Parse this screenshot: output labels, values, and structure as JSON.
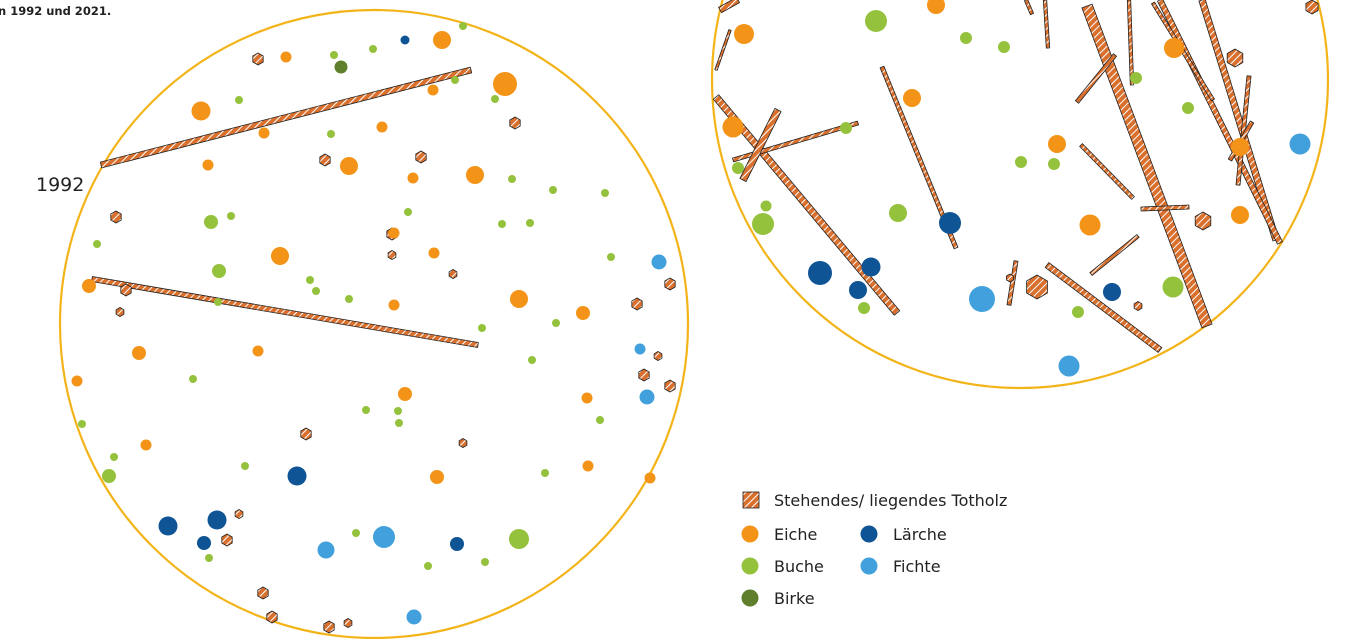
{
  "caption": "n 1992 und 2021.",
  "year_label": "1992",
  "legend": {
    "deadwood": "Stehendes/ liegendes Totholz",
    "eiche": "Eiche",
    "buche": "Buche",
    "birke": "Birke",
    "laerche": "Lärche",
    "fichte": "Fichte"
  },
  "colors": {
    "ring": "#f3b41a",
    "eiche": "#f39418",
    "buche": "#95c23d",
    "birke": "#5f7f2c",
    "laerche": "#0f5494",
    "fichte": "#42a1dc",
    "deadwood": "#d9702e"
  },
  "plots": [
    {
      "name": "plot-1992",
      "trees": [
        [
          "eiche",
          442,
          40,
          9
        ],
        [
          "eiche",
          286,
          57,
          5.5
        ],
        [
          "eiche",
          505,
          84,
          12
        ],
        [
          "eiche",
          433,
          90,
          5.5
        ],
        [
          "eiche",
          201,
          111,
          9.5
        ],
        [
          "eiche",
          382,
          127,
          5.5
        ],
        [
          "eiche",
          264,
          133,
          5.5
        ],
        [
          "eiche",
          349,
          166,
          9
        ],
        [
          "eiche",
          208,
          165,
          5.5
        ],
        [
          "eiche",
          475,
          175,
          9
        ],
        [
          "eiche",
          413,
          178,
          5.5
        ],
        [
          "eiche",
          394,
          233,
          5.5
        ],
        [
          "eiche",
          280,
          256,
          9
        ],
        [
          "eiche",
          434,
          253,
          5.5
        ],
        [
          "eiche",
          89,
          286,
          7
        ],
        [
          "eiche",
          519,
          299,
          9
        ],
        [
          "eiche",
          394,
          305,
          5.5
        ],
        [
          "eiche",
          583,
          313,
          7
        ],
        [
          "eiche",
          139,
          353,
          7
        ],
        [
          "eiche",
          258,
          351,
          5.5
        ],
        [
          "eiche",
          77,
          381,
          5.5
        ],
        [
          "eiche",
          405,
          394,
          7
        ],
        [
          "eiche",
          587,
          398,
          5.5
        ],
        [
          "eiche",
          146,
          445,
          5.5
        ],
        [
          "eiche",
          437,
          477,
          7
        ],
        [
          "eiche",
          588,
          466,
          5.5
        ],
        [
          "eiche",
          650,
          478,
          5.5
        ],
        [
          "buche",
          463,
          26,
          4
        ],
        [
          "buche",
          334,
          55,
          4
        ],
        [
          "buche",
          373,
          49,
          4
        ],
        [
          "buche",
          455,
          80,
          4
        ],
        [
          "buche",
          495,
          99,
          4
        ],
        [
          "buche",
          239,
          100,
          4
        ],
        [
          "buche",
          331,
          134,
          4
        ],
        [
          "buche",
          512,
          179,
          4
        ],
        [
          "buche",
          553,
          190,
          4
        ],
        [
          "buche",
          605,
          193,
          4
        ],
        [
          "buche",
          408,
          212,
          4
        ],
        [
          "buche",
          211,
          222,
          7
        ],
        [
          "buche",
          231,
          216,
          4
        ],
        [
          "buche",
          502,
          224,
          4
        ],
        [
          "buche",
          530,
          223,
          4
        ],
        [
          "buche",
          97,
          244,
          4
        ],
        [
          "buche",
          219,
          271,
          7
        ],
        [
          "buche",
          310,
          280,
          4
        ],
        [
          "buche",
          316,
          291,
          4
        ],
        [
          "buche",
          349,
          299,
          4
        ],
        [
          "buche",
          218,
          302,
          4
        ],
        [
          "buche",
          611,
          257,
          4
        ],
        [
          "buche",
          482,
          328,
          4
        ],
        [
          "buche",
          556,
          323,
          4
        ],
        [
          "buche",
          532,
          360,
          4
        ],
        [
          "buche",
          193,
          379,
          4
        ],
        [
          "buche",
          366,
          410,
          4
        ],
        [
          "buche",
          398,
          411,
          4
        ],
        [
          "buche",
          399,
          423,
          4
        ],
        [
          "buche",
          600,
          420,
          4
        ],
        [
          "buche",
          82,
          424,
          4
        ],
        [
          "buche",
          114,
          457,
          4
        ],
        [
          "buche",
          245,
          466,
          4
        ],
        [
          "buche",
          109,
          476,
          7
        ],
        [
          "buche",
          545,
          473,
          4
        ],
        [
          "buche",
          519,
          539,
          10
        ],
        [
          "buche",
          356,
          533,
          4
        ],
        [
          "buche",
          485,
          562,
          4
        ],
        [
          "buche",
          428,
          566,
          4
        ],
        [
          "buche",
          209,
          558,
          4
        ],
        [
          "birke",
          341,
          67,
          6.5
        ],
        [
          "laerche",
          405,
          40,
          4.5
        ],
        [
          "laerche",
          297,
          476,
          9.5
        ],
        [
          "laerche",
          168,
          526,
          9.5
        ],
        [
          "laerche",
          217,
          520,
          9.5
        ],
        [
          "laerche",
          204,
          543,
          7
        ],
        [
          "laerche",
          457,
          544,
          7
        ],
        [
          "fichte",
          659,
          262,
          7.5
        ],
        [
          "fichte",
          640,
          349,
          5.5
        ],
        [
          "fichte",
          647,
          397,
          7.5
        ],
        [
          "fichte",
          384,
          537,
          11
        ],
        [
          "fichte",
          326,
          550,
          8.5
        ],
        [
          "fichte",
          414,
          617,
          7.5
        ]
      ],
      "logs": [
        [
          101,
          165,
          471,
          70,
          6
        ],
        [
          92,
          279,
          478,
          345,
          5
        ]
      ],
      "snags": [
        [
          258,
          59,
          6
        ],
        [
          515,
          123,
          6
        ],
        [
          325,
          160,
          6
        ],
        [
          421,
          157,
          6
        ],
        [
          116,
          217,
          6
        ],
        [
          126,
          290,
          6
        ],
        [
          120,
          312,
          4.5
        ],
        [
          392,
          234,
          6
        ],
        [
          392,
          255,
          4.5
        ],
        [
          453,
          274,
          4.5
        ],
        [
          637,
          304,
          6
        ],
        [
          670,
          284,
          6
        ],
        [
          658,
          356,
          4.5
        ],
        [
          644,
          375,
          6
        ],
        [
          670,
          386,
          6
        ],
        [
          306,
          434,
          6
        ],
        [
          463,
          443,
          4.5
        ],
        [
          239,
          514,
          4.5
        ],
        [
          227,
          540,
          6
        ],
        [
          263,
          593,
          6
        ],
        [
          272,
          617,
          6
        ],
        [
          329,
          627,
          6
        ],
        [
          348,
          623,
          4.5
        ]
      ]
    },
    {
      "name": "plot-2021",
      "trees": [
        [
          "eiche",
          936,
          5,
          9
        ],
        [
          "eiche",
          744,
          34,
          10
        ],
        [
          "eiche",
          912,
          98,
          9
        ],
        [
          "eiche",
          733,
          127,
          10.5
        ],
        [
          "eiche",
          1174,
          48,
          10
        ],
        [
          "eiche",
          1057,
          144,
          9
        ],
        [
          "eiche",
          1090,
          225,
          10.5
        ],
        [
          "eiche",
          1240,
          147,
          9
        ],
        [
          "eiche",
          1240,
          215,
          9
        ],
        [
          "buche",
          876,
          21,
          11
        ],
        [
          "buche",
          966,
          38,
          6
        ],
        [
          "buche",
          1004,
          47,
          6
        ],
        [
          "buche",
          1136,
          78,
          6
        ],
        [
          "buche",
          1188,
          108,
          6
        ],
        [
          "buche",
          846,
          128,
          6
        ],
        [
          "buche",
          738,
          168,
          6
        ],
        [
          "buche",
          766,
          206,
          5.5
        ],
        [
          "buche",
          763,
          224,
          11
        ],
        [
          "buche",
          898,
          213,
          9
        ],
        [
          "buche",
          1021,
          162,
          6
        ],
        [
          "buche",
          1054,
          164,
          6
        ],
        [
          "buche",
          1173,
          287,
          10.5
        ],
        [
          "buche",
          1078,
          312,
          6
        ],
        [
          "buche",
          864,
          308,
          6
        ],
        [
          "laerche",
          950,
          223,
          11
        ],
        [
          "laerche",
          820,
          273,
          12
        ],
        [
          "laerche",
          871,
          267,
          9.5
        ],
        [
          "laerche",
          858,
          290,
          9
        ],
        [
          "laerche",
          1112,
          292,
          9
        ],
        [
          "fichte",
          982,
          299,
          13
        ],
        [
          "fichte",
          1069,
          366,
          10.5
        ],
        [
          "fichte",
          1300,
          144,
          10.5
        ]
      ],
      "logs": [
        [
          1087,
          6,
          1207,
          326,
          11
        ],
        [
          1202,
          0,
          1276,
          240,
          6.5
        ],
        [
          1160,
          0,
          1280,
          243,
          5.5
        ],
        [
          716,
          97,
          897,
          313,
          7
        ],
        [
          882,
          67,
          956,
          248,
          4
        ],
        [
          733,
          160,
          858,
          123,
          4
        ],
        [
          778,
          110,
          743,
          180,
          7
        ],
        [
          1047,
          265,
          1160,
          350,
          6
        ],
        [
          1081,
          145,
          1133,
          198,
          4
        ],
        [
          1091,
          274,
          1138,
          236,
          3.5
        ],
        [
          1141,
          209,
          1189,
          207,
          4
        ],
        [
          1077,
          102,
          1115,
          55,
          4
        ],
        [
          1153,
          3,
          1213,
          100,
          3.5
        ],
        [
          1249,
          76,
          1238,
          185,
          4
        ],
        [
          1252,
          122,
          1230,
          160,
          4
        ],
        [
          1129,
          0,
          1132,
          85,
          3.5
        ],
        [
          1026,
          0,
          1032,
          14,
          3.5
        ],
        [
          1045,
          0,
          1048,
          48,
          3.5
        ],
        [
          1016,
          261,
          1009,
          305,
          4
        ],
        [
          716,
          70,
          730,
          30,
          2.5
        ],
        [
          720,
          10,
          738,
          0,
          6
        ]
      ],
      "snags": [
        [
          1037,
          287,
          12
        ],
        [
          1235,
          58,
          9
        ],
        [
          1203,
          221,
          9
        ],
        [
          1312,
          7,
          7
        ],
        [
          1010,
          278,
          4
        ],
        [
          1138,
          306,
          4.5
        ]
      ]
    }
  ]
}
